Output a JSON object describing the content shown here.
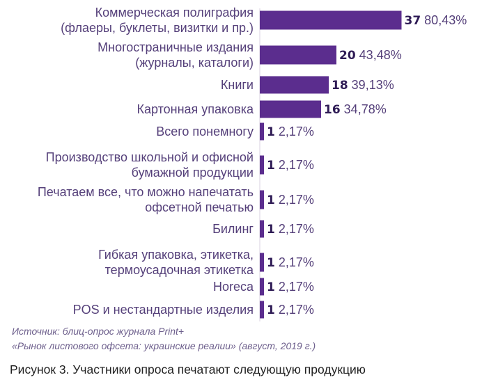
{
  "colors": {
    "bar": "#5b2d8e",
    "label": "#55407a",
    "count": "#2e1b55"
  },
  "chart_data": {
    "type": "bar",
    "orientation": "horizontal",
    "categories": [
      [
        "Коммерческая полиграфия",
        "(флаеры, буклеты, визитки и пр.)"
      ],
      [
        "Многостраничные издания",
        "(журналы, каталоги)"
      ],
      [
        "Книги"
      ],
      [
        "Картонная упаковка"
      ],
      [
        "Всего понемногу"
      ],
      [
        "Производство школьной и офисной",
        "бумажной продукции"
      ],
      [
        "Печатаем все, что можно напечатать",
        "офсетной печатью"
      ],
      [
        "Билинг"
      ],
      [
        "Гибкая упаковка, этикетка,",
        "термоусадочная этикетка"
      ],
      [
        "Horeca"
      ],
      [
        "POS и нестандартные изделия"
      ]
    ],
    "values": [
      37,
      20,
      18,
      16,
      1,
      1,
      1,
      1,
      1,
      1,
      1
    ],
    "percent_labels": [
      "80,43%",
      "43,48%",
      "39,13%",
      "34,78%",
      "2,17%",
      "2,17%",
      "2,17%",
      "2,17%",
      "2,17%",
      "2,17%",
      "2,17%"
    ],
    "title": "",
    "xlabel": "",
    "ylabel": "",
    "grid": false,
    "legend": "none"
  },
  "source_text": [
    "Источник: блиц-опрос журнала Print+",
    "«Рынок листового офсета: украинские реалии» (август, 2019 г.)"
  ],
  "caption": "Рисунок 3. Участники опроса печатают следующую продукцию"
}
